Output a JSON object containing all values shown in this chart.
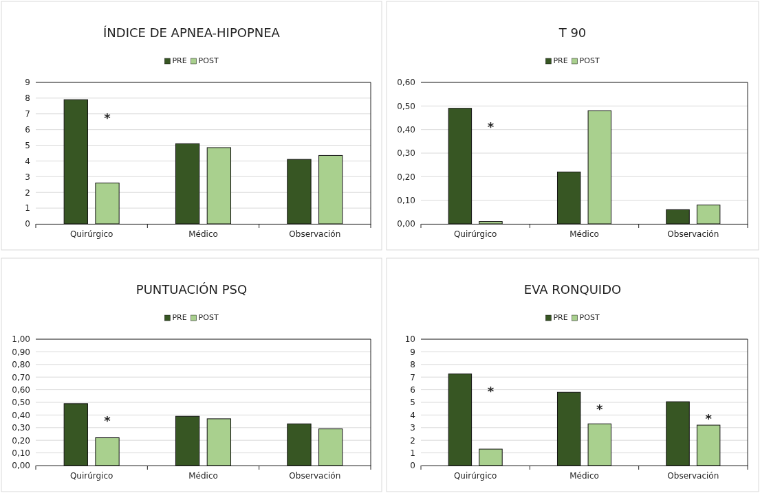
{
  "chart_data": [
    {
      "type": "bar",
      "title": "ÍNDICE DE APNEA-HIPOPNEA",
      "categories": [
        "Quirúrgico",
        "Médico",
        "Observación"
      ],
      "series": [
        {
          "name": "PRE",
          "color": "#375623",
          "values": [
            7.9,
            5.1,
            4.1
          ]
        },
        {
          "name": "POST",
          "color": "#a9d08e",
          "values": [
            2.6,
            4.85,
            4.35
          ]
        }
      ],
      "ylim": [
        0,
        9
      ],
      "yticks": [
        0,
        1,
        2,
        3,
        4,
        5,
        6,
        7,
        8,
        9
      ],
      "grid": "y",
      "legend": "top",
      "annotations": [
        "*"
      ]
    },
    {
      "type": "bar",
      "title": "T 90",
      "categories": [
        "Quirúrgico",
        "Médico",
        "Observación"
      ],
      "series": [
        {
          "name": "PRE",
          "color": "#375623",
          "values": [
            0.49,
            0.22,
            0.06
          ]
        },
        {
          "name": "POST",
          "color": "#a9d08e",
          "values": [
            0.01,
            0.48,
            0.08
          ]
        }
      ],
      "ylim": [
        0,
        0.6
      ],
      "yticks": [
        {
          "value": 0,
          "label": "0,00"
        },
        {
          "value": 0.1,
          "label": "0,10"
        },
        {
          "value": 0.2,
          "label": "0,20"
        },
        {
          "value": 0.3,
          "label": "0,30"
        },
        {
          "value": 0.4,
          "label": "0,40"
        },
        {
          "value": 0.5,
          "label": "0,50"
        },
        {
          "value": 0.6,
          "label": "0,60"
        }
      ],
      "grid": "y",
      "legend": "top",
      "annotations": [
        "*"
      ]
    },
    {
      "type": "bar",
      "title": "PUNTUACIÓN PSQ",
      "categories": [
        "Quirúrgico",
        "Médico",
        "Observación"
      ],
      "series": [
        {
          "name": "PRE",
          "color": "#375623",
          "values": [
            0.49,
            0.39,
            0.33
          ]
        },
        {
          "name": "POST",
          "color": "#a9d08e",
          "values": [
            0.22,
            0.37,
            0.29
          ]
        }
      ],
      "ylim": [
        0,
        1
      ],
      "yticks": [
        {
          "value": 0,
          "label": "0,00"
        },
        {
          "value": 0.1,
          "label": "0,10"
        },
        {
          "value": 0.2,
          "label": "0,20"
        },
        {
          "value": 0.3,
          "label": "0,30"
        },
        {
          "value": 0.4,
          "label": "0,40"
        },
        {
          "value": 0.5,
          "label": "0,50"
        },
        {
          "value": 0.6,
          "label": "0,60"
        },
        {
          "value": 0.7,
          "label": "0,70"
        },
        {
          "value": 0.8,
          "label": "0,80"
        },
        {
          "value": 0.9,
          "label": "0,90"
        },
        {
          "value": 1,
          "label": "1,00"
        }
      ],
      "grid": "y",
      "legend": "top",
      "annotations": [
        "*"
      ]
    },
    {
      "type": "bar",
      "title": "EVA RONQUIDO",
      "categories": [
        "Quirúrgico",
        "Médico",
        "Observación"
      ],
      "series": [
        {
          "name": "PRE",
          "color": "#375623",
          "values": [
            7.25,
            5.8,
            5.05
          ]
        },
        {
          "name": "POST",
          "color": "#a9d08e",
          "values": [
            1.3,
            3.3,
            3.2
          ]
        }
      ],
      "ylim": [
        0,
        10
      ],
      "yticks": [
        0,
        1,
        2,
        3,
        4,
        5,
        6,
        7,
        8,
        9,
        10
      ],
      "grid": "y",
      "legend": "top",
      "annotations": [
        "*",
        "*",
        "*"
      ]
    }
  ]
}
